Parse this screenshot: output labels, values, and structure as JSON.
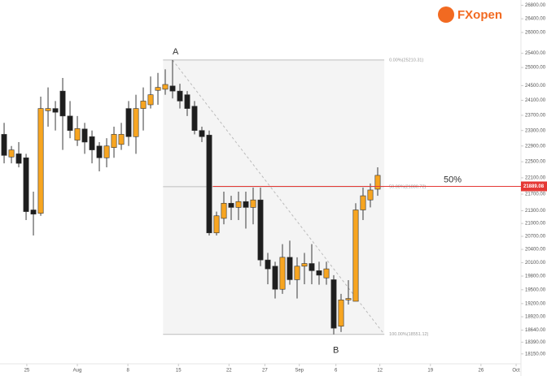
{
  "chart_data": {
    "type": "candlestick",
    "log_scale": true,
    "up_color": "#f7a521",
    "down_color": "#1e1e1e",
    "wick_color": "#3a3a3a",
    "open": [
      23200,
      22620,
      22700,
      22600,
      21320,
      21240,
      23820,
      23880,
      24350,
      23680,
      23050,
      23340,
      23140,
      22900,
      22600,
      22860,
      22940,
      23880,
      23140,
      23880,
      23980,
      24370,
      24400,
      24490,
      24350,
      24250,
      23940,
      23300,
      23180,
      20780,
      21120,
      21480,
      21380,
      21520,
      21380,
      21560,
      20160,
      20020,
      19510,
      20220,
      19720,
      20020,
      20080,
      19920,
      19760,
      19720,
      18720,
      19280,
      19250,
      21320,
      21560,
      21820
    ],
    "close": [
      22660,
      22800,
      22460,
      21280,
      21220,
      23880,
      23880,
      23780,
      23680,
      23300,
      23350,
      23000,
      22800,
      22600,
      22900,
      23200,
      23200,
      23140,
      23880,
      24080,
      24250,
      24450,
      24530,
      24350,
      24080,
      23880,
      23300,
      23140,
      20780,
      21180,
      21480,
      21380,
      21520,
      21380,
      21560,
      20160,
      19960,
      19510,
      20220,
      19720,
      20020,
      20080,
      19920,
      19820,
      19960,
      18680,
      19280,
      19310,
      21320,
      21660,
      21800,
      22160
    ],
    "high": [
      23500,
      22900,
      23000,
      22700,
      21760,
      24200,
      24450,
      24080,
      24710,
      24080,
      23680,
      23500,
      23300,
      23000,
      23100,
      23400,
      23500,
      24080,
      24250,
      24450,
      24750,
      24850,
      24950,
      25210,
      24550,
      24350,
      24080,
      23400,
      23300,
      21280,
      21760,
      21660,
      21760,
      21760,
      21860,
      21860,
      20320,
      20120,
      20520,
      20600,
      20220,
      20320,
      20520,
      20120,
      20120,
      19820,
      19410,
      19710,
      21480,
      21860,
      21960,
      22360
    ],
    "low": [
      22460,
      22460,
      22360,
      21080,
      20720,
      21180,
      23400,
      23300,
      22800,
      23100,
      22900,
      22700,
      22460,
      22260,
      22360,
      22600,
      22800,
      22900,
      22700,
      23300,
      23880,
      23980,
      24250,
      24150,
      23880,
      23680,
      23200,
      23000,
      20720,
      20720,
      20980,
      21080,
      21080,
      20880,
      20980,
      20020,
      19620,
      19310,
      19410,
      19610,
      19310,
      19620,
      19620,
      19610,
      19610,
      18551,
      18600,
      19180,
      19280,
      21080,
      21380,
      21660
    ],
    "ylim": [
      17950,
      26960
    ],
    "yticks": [
      {
        "value": 26800,
        "label": "26800.00"
      },
      {
        "value": 26400,
        "label": "26400.00"
      },
      {
        "value": 26000,
        "label": "26000.00"
      },
      {
        "value": 25400,
        "label": "25400.00"
      },
      {
        "value": 25000,
        "label": "25000.00"
      },
      {
        "value": 24500,
        "label": "24500.00"
      },
      {
        "value": 24100,
        "label": "24100.00"
      },
      {
        "value": 23700,
        "label": "23700.00"
      },
      {
        "value": 23300,
        "label": "23300.00"
      },
      {
        "value": 22900,
        "label": "22900.00"
      },
      {
        "value": 22500,
        "label": "22500.00"
      },
      {
        "value": 22100,
        "label": "22100.00"
      },
      {
        "value": 21700,
        "label": "21700.00"
      },
      {
        "value": 21300,
        "label": "21300.00"
      },
      {
        "value": 21000,
        "label": "21000.00"
      },
      {
        "value": 20700,
        "label": "20700.00"
      },
      {
        "value": 20400,
        "label": "20400.00"
      },
      {
        "value": 20100,
        "label": "20100.00"
      },
      {
        "value": 19800,
        "label": "19800.00"
      },
      {
        "value": 19500,
        "label": "19500.00"
      },
      {
        "value": 19200,
        "label": "19200.00"
      },
      {
        "value": 18920,
        "label": "18920.00"
      },
      {
        "value": 18640,
        "label": "18640.00"
      },
      {
        "value": 18390,
        "label": "18390.00"
      },
      {
        "value": 18150,
        "label": "18150.00"
      }
    ],
    "xlim": [
      -0.56,
      70.56
    ],
    "xticks": [
      {
        "value": 3.1,
        "label": "25"
      },
      {
        "value": 10,
        "label": "Aug"
      },
      {
        "value": 16.9,
        "label": "8"
      },
      {
        "value": 23.8,
        "label": "15"
      },
      {
        "value": 30.7,
        "label": "22"
      },
      {
        "value": 35.6,
        "label": "27"
      },
      {
        "value": 40.3,
        "label": "Sep"
      },
      {
        "value": 45.3,
        "label": "6"
      },
      {
        "value": 51.3,
        "label": "12"
      },
      {
        "value": 58.2,
        "label": "19"
      },
      {
        "value": 65.1,
        "label": "26"
      },
      {
        "value": 69.9,
        "label": "Oct"
      }
    ],
    "fib_levels": [
      {
        "value": 25210.31,
        "label": "0.00%(25210.31)"
      },
      {
        "value": 21880.72,
        "label": "50.00%(21880.72)"
      },
      {
        "value": 18551.12,
        "label": "100.00%(18551.12)"
      }
    ],
    "point_a": "A",
    "point_b": "B",
    "level_note": "50%",
    "last_price": 21889.08,
    "logo": "FXopen"
  }
}
